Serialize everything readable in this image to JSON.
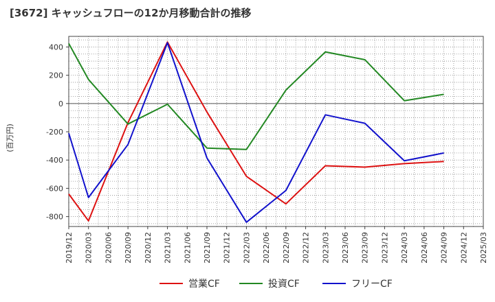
{
  "chart_data": {
    "type": "line",
    "title": "[3672]  キャッシュフローの12か月移動合計の推移",
    "ylabel": "(百万円)",
    "xlabel": "",
    "ylim": [
      -870,
      475
    ],
    "yticks": [
      400,
      200,
      0,
      -200,
      -400,
      -600,
      -800
    ],
    "x_ticks": [
      "2019/12",
      "2020/03",
      "2020/06",
      "2020/09",
      "2020/12",
      "2021/03",
      "2021/06",
      "2021/09",
      "2021/12",
      "2022/03",
      "2022/06",
      "2022/09",
      "2022/12",
      "2023/03",
      "2023/06",
      "2023/09",
      "2023/12",
      "2024/03",
      "2024/06",
      "2024/09",
      "2024/12",
      "2025/03"
    ],
    "grid": true,
    "legend_position": "bottom-center",
    "series": [
      {
        "name": "営業CF",
        "color": "#dd1111",
        "points": [
          {
            "x": "2019/12",
            "y": -640
          },
          {
            "x": "2020/03",
            "y": -830
          },
          {
            "x": "2020/09",
            "y": -135
          },
          {
            "x": "2021/03",
            "y": 435
          },
          {
            "x": "2021/09",
            "y": -60
          },
          {
            "x": "2022/03",
            "y": -515
          },
          {
            "x": "2022/09",
            "y": -710
          },
          {
            "x": "2023/03",
            "y": -440
          },
          {
            "x": "2023/09",
            "y": -450
          },
          {
            "x": "2024/03",
            "y": -425
          },
          {
            "x": "2024/09",
            "y": -410
          }
        ]
      },
      {
        "name": "投資CF",
        "color": "#228822",
        "points": [
          {
            "x": "2019/12",
            "y": 425
          },
          {
            "x": "2020/03",
            "y": 170
          },
          {
            "x": "2020/09",
            "y": -145
          },
          {
            "x": "2021/03",
            "y": -5
          },
          {
            "x": "2021/09",
            "y": -315
          },
          {
            "x": "2022/03",
            "y": -325
          },
          {
            "x": "2022/09",
            "y": 95
          },
          {
            "x": "2023/03",
            "y": 365
          },
          {
            "x": "2023/09",
            "y": 310
          },
          {
            "x": "2024/03",
            "y": 20
          },
          {
            "x": "2024/09",
            "y": 65
          }
        ]
      },
      {
        "name": "フリーCF",
        "color": "#1111cc",
        "points": [
          {
            "x": "2019/12",
            "y": -210
          },
          {
            "x": "2020/03",
            "y": -665
          },
          {
            "x": "2020/09",
            "y": -290
          },
          {
            "x": "2021/03",
            "y": 430
          },
          {
            "x": "2021/09",
            "y": -385
          },
          {
            "x": "2022/03",
            "y": -840
          },
          {
            "x": "2022/09",
            "y": -615
          },
          {
            "x": "2023/03",
            "y": -80
          },
          {
            "x": "2023/09",
            "y": -140
          },
          {
            "x": "2024/03",
            "y": -405
          },
          {
            "x": "2024/09",
            "y": -350
          }
        ]
      }
    ]
  }
}
